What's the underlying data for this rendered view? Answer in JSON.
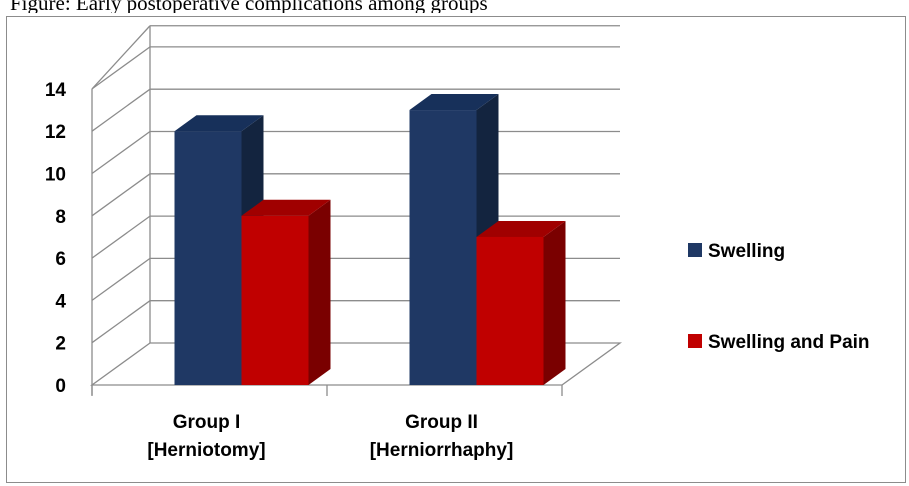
{
  "caption_fragment": "Figure: Early postoperative complications among groups",
  "colors": {
    "swelling": "#1f3864",
    "swelling_side": "#13243f",
    "swelling_top": "#17305a",
    "swelling_and_pain": "#c00000",
    "swelling_and_pain_side": "#7a0000",
    "swelling_and_pain_top": "#a00000",
    "grid": "#8c8c8c"
  },
  "chart_data": {
    "type": "bar",
    "title": "",
    "xlabel": "",
    "ylabel": "",
    "ylim": [
      0,
      14
    ],
    "yticks": [
      0,
      2,
      4,
      6,
      8,
      10,
      12,
      14
    ],
    "grid": true,
    "three_d": true,
    "legend_position": "right",
    "categories": [
      [
        "Group I",
        "[Herniotomy]"
      ],
      [
        "Group II",
        "[Herniorrhaphy]"
      ]
    ],
    "series": [
      {
        "name": "Swelling",
        "color_key": "swelling",
        "values": [
          12,
          13
        ]
      },
      {
        "name": "Swelling and Pain",
        "color_key": "swelling_and_pain",
        "values": [
          8,
          7
        ]
      }
    ]
  }
}
